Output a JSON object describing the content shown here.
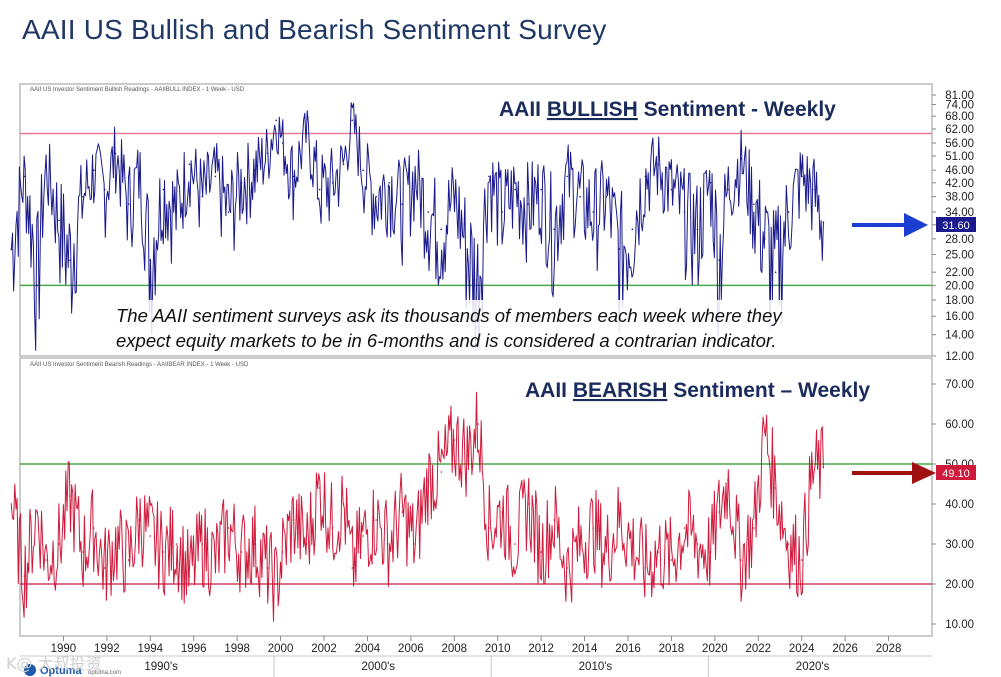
{
  "slide": {
    "title": "AAII US Bullish and Bearish Sentiment Survey"
  },
  "note": {
    "line1": "The AAII sentiment surveys ask its thousands of members each week where they",
    "line2": "expect equity markets to be in 6-months and is considered a contrarian indicator."
  },
  "footer": {
    "brand": "Optuma",
    "site": "optuma.com",
    "watermark": "K@ 大叔投资"
  },
  "colors": {
    "bull_series": "#1a1a8c",
    "bear_series": "#d01a3c",
    "upper_band_bull": "#e87b94",
    "lower_band_bull": "#4aa84a",
    "upper_band_bear": "#4aa84a",
    "lower_band_bear": "#d04060",
    "bull_arrow": "#1a3fd0",
    "bear_arrow": "#a01010",
    "title": "#1f3864",
    "panel_title": "#1a2b5c"
  },
  "chart_data": [
    {
      "type": "line",
      "header": "AAII US Investor Sentiment Bullish Readings - AAIIBULL INDEX - 1 Week - USD",
      "title_prefix": "AAII ",
      "title_emph": "BULLISH",
      "title_suffix": " Sentiment - Weekly",
      "y_ticks": [
        "81.00",
        "74.00",
        "68.00",
        "62.00",
        "56.00",
        "51.00",
        "46.00",
        "42.00",
        "38.00",
        "34.00",
        "31.00",
        "28.00",
        "25.00",
        "22.00",
        "20.00",
        "18.00",
        "16.00",
        "14.00",
        "12.00"
      ],
      "ylim": [
        12,
        81
      ],
      "scale": "log",
      "last_value": "31.60",
      "bands": [
        60,
        20
      ],
      "x_range": [
        1988,
        2030
      ],
      "series": [
        {
          "x": [
            1987.6,
            1988.2,
            1988.8,
            1989.2,
            1989.8,
            1990.3,
            1990.9,
            1991.4,
            1991.9,
            1992.4,
            1993,
            1993.5,
            1994,
            1994.6,
            1995.2,
            1995.8,
            1996.4,
            1997,
            1997.6,
            1998.2,
            1998.8,
            1999.4,
            1999.8,
            2000.1,
            2000.6,
            2001.2,
            2001.8,
            2002.4,
            2002.9,
            2003.3,
            2003.8,
            2004.4,
            2005,
            2005.6,
            2006.2,
            2006.8,
            2007.4,
            2008,
            2008.6,
            2009.1,
            2009.6,
            2010.2,
            2010.8,
            2011.4,
            2012,
            2012.6,
            2013.2,
            2013.8,
            2014.4,
            2015,
            2015.6,
            2016.2,
            2016.8,
            2017.4,
            2018,
            2018.6,
            2019.2,
            2019.8,
            2020.2,
            2020.6,
            2021.2,
            2021.8,
            2022.3,
            2022.8,
            2023.4,
            2024,
            2024.5,
            2025
          ],
          "values": [
            26,
            44,
            20,
            47,
            32,
            24,
            38,
            46,
            40,
            52,
            36,
            45,
            24,
            40,
            34,
            48,
            38,
            44,
            34,
            42,
            46,
            52,
            66,
            56,
            44,
            60,
            40,
            42,
            48,
            66,
            46,
            38,
            42,
            36,
            44,
            34,
            30,
            38,
            26,
            20,
            44,
            34,
            40,
            36,
            40,
            30,
            44,
            38,
            34,
            38,
            26,
            30,
            44,
            48,
            40,
            34,
            30,
            42,
            24,
            40,
            50,
            36,
            28,
            22,
            34,
            44,
            40,
            31.6
          ]
        }
      ]
    },
    {
      "type": "line",
      "header": "AAII US Investor Sentiment Bearish Readings - AAIIBEAR INDEX - 1 Week - USD",
      "title_prefix": "AAII ",
      "title_emph": "BEARISH",
      "title_suffix": " Sentiment – Weekly",
      "y_ticks": [
        "70.00",
        "60.00",
        "50.00",
        "40.00",
        "30.00",
        "20.00",
        "10.00"
      ],
      "ylim": [
        7,
        73
      ],
      "scale": "linear",
      "last_value": "49.10",
      "bands": [
        50,
        20
      ],
      "x_ticks": [
        "1990",
        "1992",
        "1994",
        "1996",
        "1998",
        "2000",
        "2002",
        "2004",
        "2006",
        "2008",
        "2010",
        "2012",
        "2014",
        "2016",
        "2018",
        "2020",
        "2022",
        "2024",
        "2026",
        "2028"
      ],
      "decade_labels": [
        "1990's",
        "2000's",
        "2010's",
        "2020's"
      ],
      "x_range": [
        1988,
        2030
      ],
      "series": [
        {
          "x": [
            1987.6,
            1988.2,
            1988.8,
            1989.2,
            1989.8,
            1990.3,
            1990.9,
            1991.4,
            1991.9,
            1992.4,
            1993,
            1993.5,
            1994,
            1994.6,
            1995.2,
            1995.8,
            1996.4,
            1997,
            1997.6,
            1998.2,
            1998.8,
            1999.4,
            1999.8,
            2000.1,
            2000.6,
            2001.2,
            2001.8,
            2002.4,
            2002.9,
            2003.3,
            2003.8,
            2004.4,
            2005,
            2005.6,
            2006.2,
            2006.8,
            2007.4,
            2008,
            2008.6,
            2009.1,
            2009.6,
            2010.2,
            2010.8,
            2011.4,
            2012,
            2012.6,
            2013.2,
            2013.8,
            2014.4,
            2015,
            2015.6,
            2016.2,
            2016.8,
            2017.4,
            2018,
            2018.6,
            2019.2,
            2019.8,
            2020.2,
            2020.6,
            2021.2,
            2021.8,
            2022.3,
            2022.8,
            2023.4,
            2024,
            2024.5,
            2025
          ],
          "values": [
            40,
            22,
            38,
            26,
            30,
            42,
            28,
            34,
            24,
            30,
            26,
            36,
            32,
            28,
            30,
            22,
            30,
            26,
            34,
            28,
            30,
            24,
            20,
            28,
            36,
            30,
            44,
            34,
            40,
            24,
            32,
            36,
            30,
            38,
            30,
            46,
            48,
            56,
            52,
            60,
            34,
            38,
            30,
            40,
            28,
            36,
            24,
            30,
            34,
            28,
            36,
            30,
            24,
            28,
            26,
            34,
            30,
            28,
            38,
            46,
            26,
            34,
            58,
            44,
            30,
            26,
            48,
            49.1
          ]
        }
      ]
    }
  ]
}
